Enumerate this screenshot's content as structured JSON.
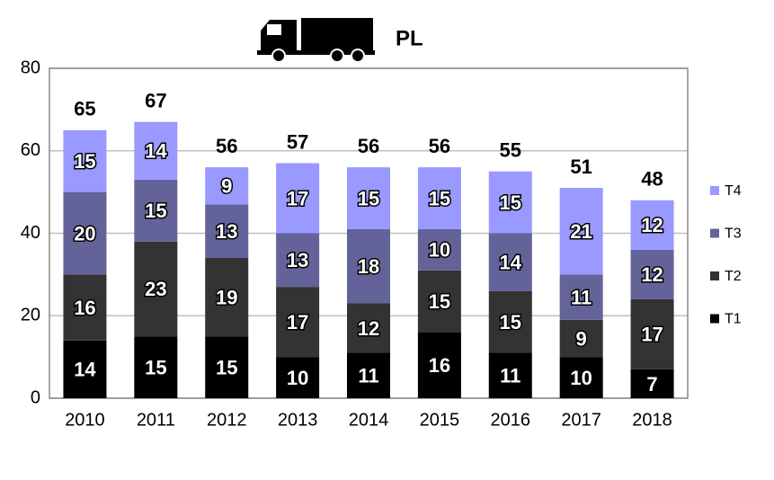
{
  "chart_data": {
    "type": "stacked-bar",
    "title": "PL",
    "categories": [
      "2010",
      "2011",
      "2012",
      "2013",
      "2014",
      "2015",
      "2016",
      "2017",
      "2018"
    ],
    "series": [
      {
        "name": "T1",
        "color": "#000000",
        "values": [
          14,
          15,
          15,
          10,
          11,
          16,
          11,
          10,
          7
        ]
      },
      {
        "name": "T2",
        "color": "#333333",
        "values": [
          16,
          23,
          19,
          17,
          12,
          15,
          15,
          9,
          17
        ]
      },
      {
        "name": "T3",
        "color": "#636399",
        "values": [
          20,
          15,
          13,
          13,
          18,
          10,
          14,
          11,
          12
        ]
      },
      {
        "name": "T4",
        "color": "#9999ff",
        "values": [
          15,
          14,
          9,
          17,
          15,
          15,
          15,
          21,
          12
        ]
      }
    ],
    "totals": [
      65,
      67,
      56,
      57,
      56,
      56,
      55,
      51,
      48
    ],
    "ylim": [
      0,
      80
    ],
    "yticks": [
      0,
      20,
      40,
      60,
      80
    ],
    "grid": true,
    "legend": "right"
  }
}
